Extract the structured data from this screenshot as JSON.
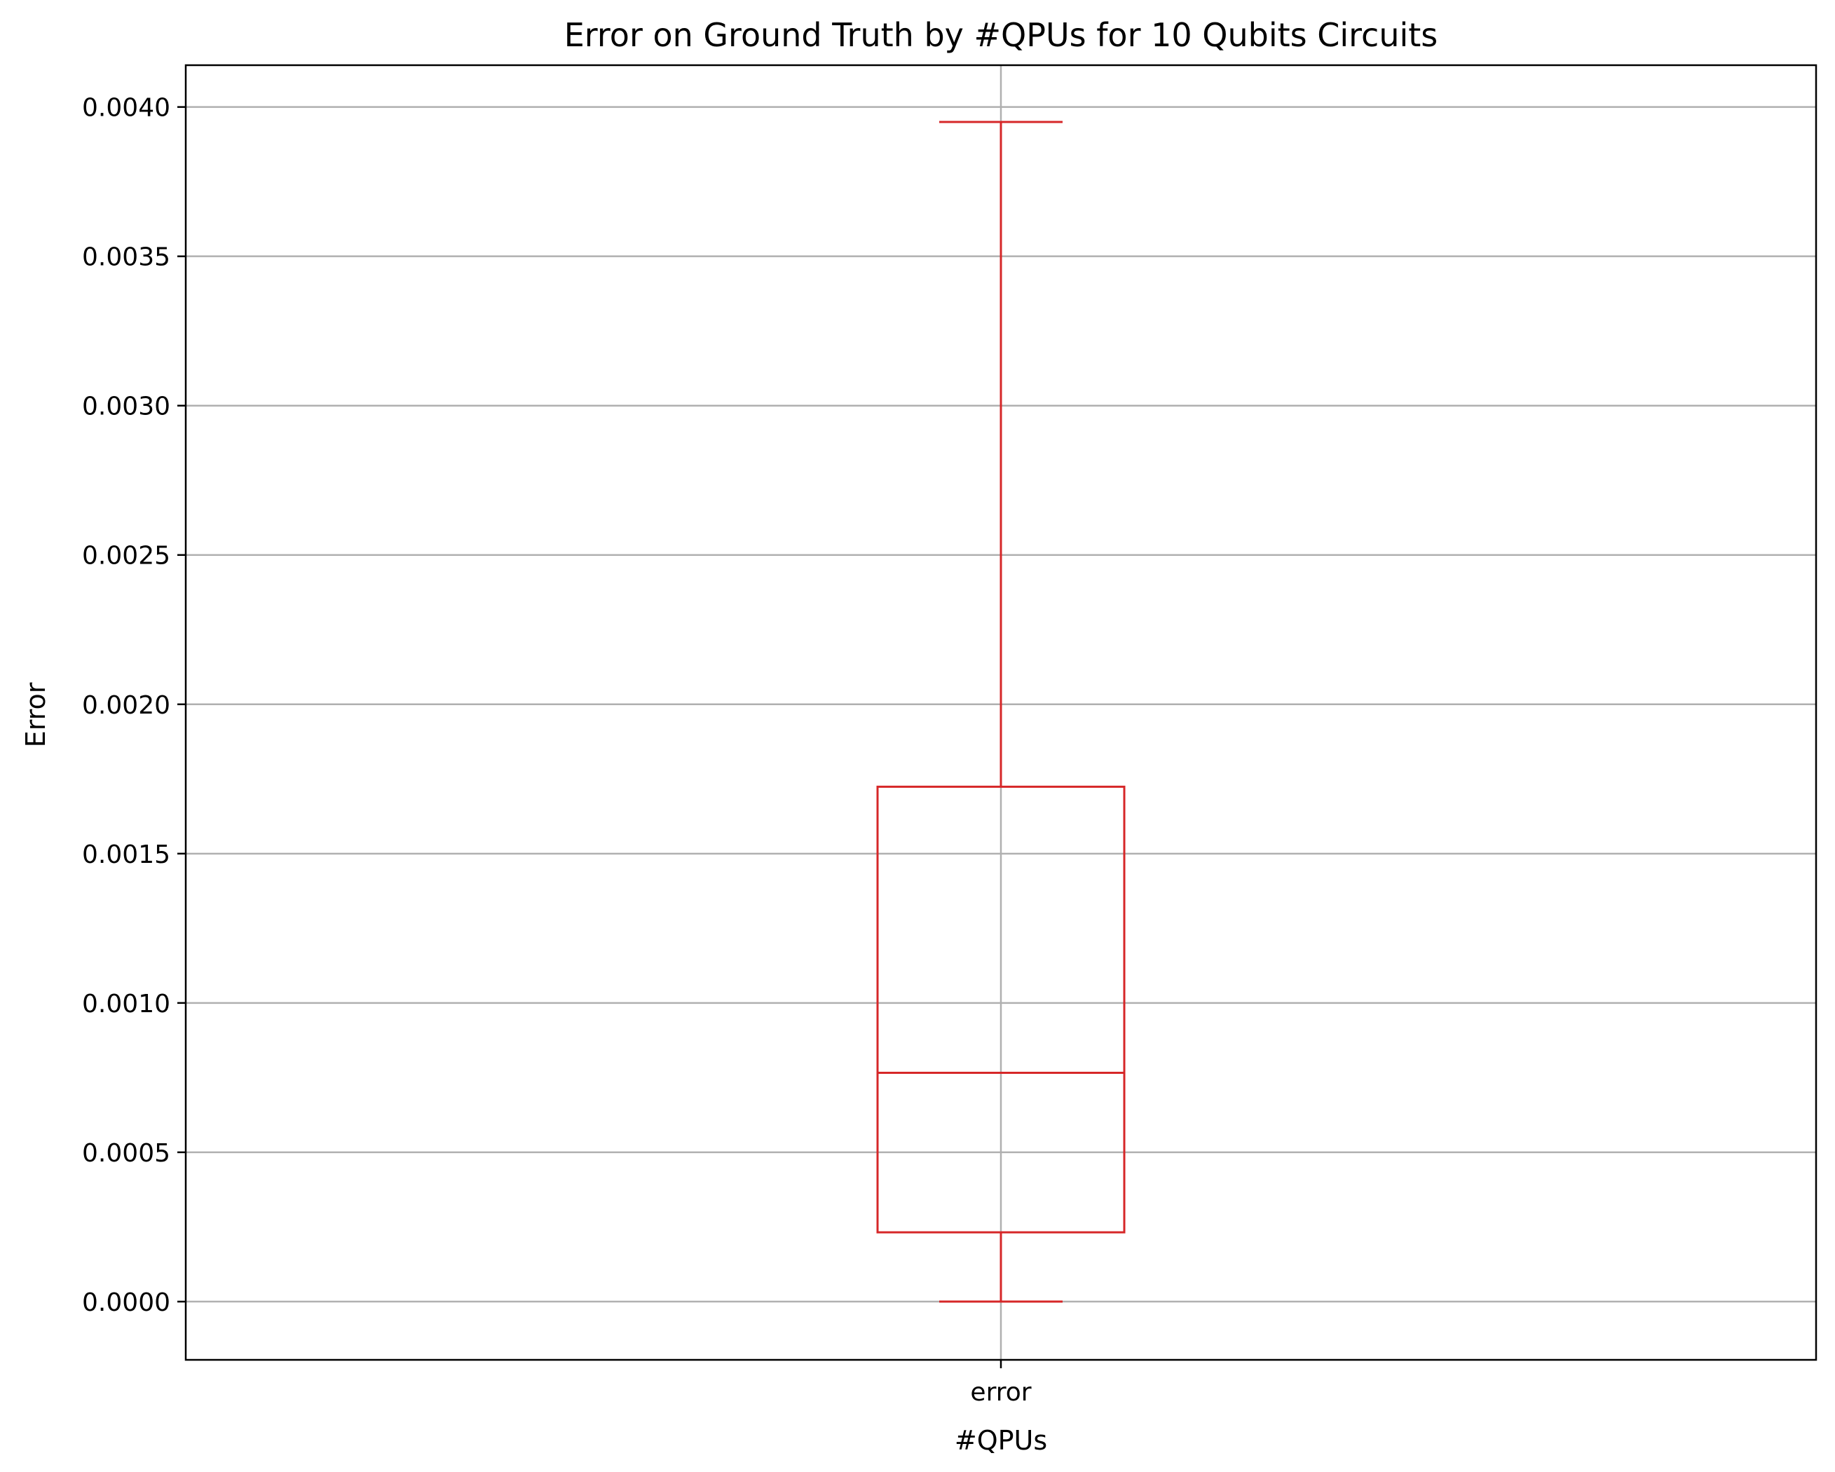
{
  "chart_data": {
    "type": "box",
    "title": "Error on Ground Truth by #QPUs for 10 Qubits Circuits",
    "xlabel": "#QPUs",
    "ylabel": "Error",
    "categories": [
      "error"
    ],
    "ylim": [
      -0.000195,
      0.00414
    ],
    "yticks": [
      "0.0000",
      "0.0005",
      "0.0010",
      "0.0015",
      "0.0020",
      "0.0025",
      "0.0030",
      "0.0035",
      "0.0040"
    ],
    "grid": true,
    "box": {
      "whisker_low": 0.0,
      "q1": 0.000232,
      "median": 0.000766,
      "q3": 0.001724,
      "whisker_high": 0.00395
    },
    "colors": {
      "box": "#d62728",
      "grid": "#b0b0b0",
      "axes": "#000000"
    }
  }
}
